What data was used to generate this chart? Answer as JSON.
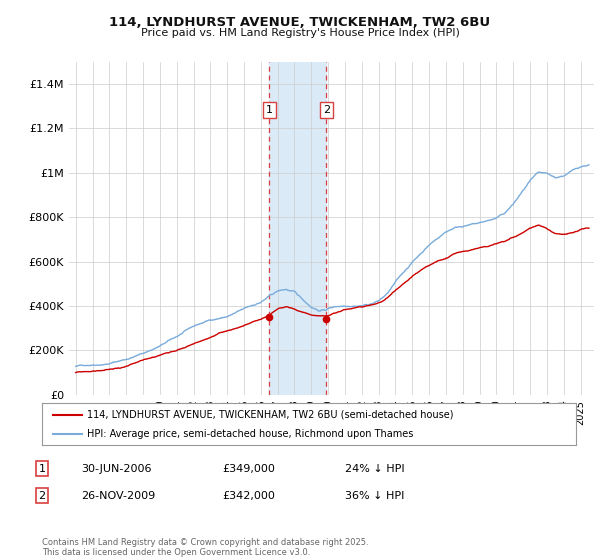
{
  "title_line1": "114, LYNDHURST AVENUE, TWICKENHAM, TW2 6BU",
  "title_line2": "Price paid vs. HM Land Registry's House Price Index (HPI)",
  "ylim": [
    0,
    1500000
  ],
  "yticks": [
    0,
    200000,
    400000,
    600000,
    800000,
    1000000,
    1200000,
    1400000
  ],
  "ytick_labels": [
    "£0",
    "£200K",
    "£400K",
    "£600K",
    "£800K",
    "£1M",
    "£1.2M",
    "£1.4M"
  ],
  "sale1_date": 2006.5,
  "sale1_price": 349000,
  "sale1_label": "1",
  "sale2_date": 2009.9,
  "sale2_price": 342000,
  "sale2_label": "2",
  "highlight_color": "#daeaf7",
  "vline_color": "#d94040",
  "property_color": "#cc0000",
  "hpi_color": "#7aacdb",
  "legend_property": "114, LYNDHURST AVENUE, TWICKENHAM, TW2 6BU (semi-detached house)",
  "legend_hpi": "HPI: Average price, semi-detached house, Richmond upon Thames",
  "note1_label": "1",
  "note1_date": "30-JUN-2006",
  "note1_price": "£349,000",
  "note1_pct": "24% ↓ HPI",
  "note2_label": "2",
  "note2_date": "26-NOV-2009",
  "note2_price": "£342,000",
  "note2_pct": "36% ↓ HPI",
  "footer": "Contains HM Land Registry data © Crown copyright and database right 2025.\nThis data is licensed under the Open Government Licence v3.0.",
  "background_color": "#ffffff",
  "grid_color": "#cccccc",
  "xmin": 1994.6,
  "xmax": 2025.8
}
